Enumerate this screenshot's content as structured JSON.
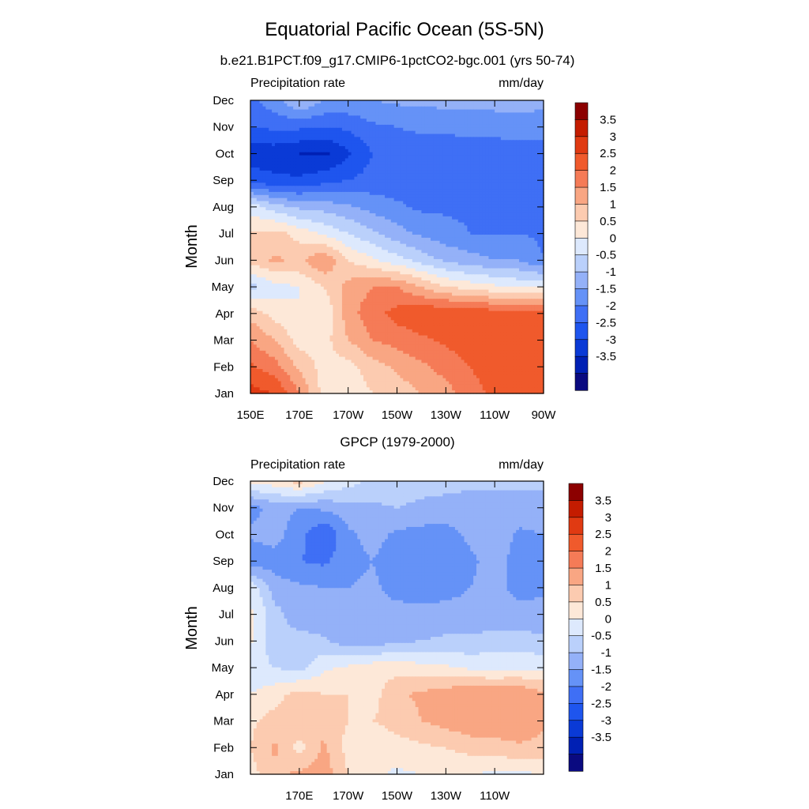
{
  "figure": {
    "title": "Equatorial Pacific Ocean (5S-5N)"
  },
  "chart_data": [
    {
      "type": "heatmap",
      "title": "b.e21.B1PCT.f09_g17.CMIP6-1pctCO2-bgc.001 (yrs 50-74)",
      "left_string": "Precipitation rate",
      "right_string": "mm/day",
      "ylabel": "Month",
      "x_ticks": [
        150,
        170,
        190,
        210,
        230,
        250,
        270
      ],
      "x_tick_labels": [
        "150E",
        "170E",
        "170W",
        "150W",
        "130W",
        "110W",
        "90W"
      ],
      "xlim": [
        150,
        270
      ],
      "y_ticks": [
        1,
        2,
        3,
        4,
        5,
        6,
        7,
        8,
        9,
        10,
        11,
        12
      ],
      "y_tick_labels": [
        "Jan",
        "Feb",
        "Mar",
        "Apr",
        "May",
        "Jun",
        "Jul",
        "Aug",
        "Sep",
        "Oct",
        "Nov",
        "Dec"
      ],
      "ylim": [
        1,
        12
      ],
      "x": [
        150,
        160,
        170,
        180,
        190,
        200,
        210,
        220,
        230,
        240,
        250,
        260,
        270
      ],
      "months": [
        1,
        2,
        3,
        4,
        5,
        6,
        7,
        8,
        9,
        10,
        11,
        12
      ],
      "values": [
        [
          3.2,
          3.0,
          2.0,
          0.8,
          0.6,
          1.0,
          1.2,
          1.5,
          1.8,
          2.3,
          2.6,
          2.5,
          2.8
        ],
        [
          2.6,
          2.2,
          1.4,
          0.8,
          0.8,
          1.3,
          1.6,
          1.9,
          2.2,
          2.5,
          2.8,
          2.8,
          2.8
        ],
        [
          2.0,
          1.5,
          0.8,
          0.8,
          1.5,
          2.0,
          2.2,
          2.4,
          2.6,
          2.8,
          2.9,
          3.0,
          2.8
        ],
        [
          1.3,
          0.8,
          0.5,
          0.5,
          1.8,
          2.3,
          2.7,
          2.9,
          3.0,
          2.9,
          2.8,
          2.8,
          2.8
        ],
        [
          -0.2,
          0.3,
          0.5,
          1.0,
          1.7,
          2.0,
          2.0,
          1.5,
          1.0,
          0.8,
          0.6,
          0.4,
          0.5
        ],
        [
          1.2,
          1.6,
          1.4,
          2.0,
          1.0,
          0.6,
          0.2,
          -0.2,
          -0.6,
          -0.8,
          -1.0,
          -1.0,
          -1.5
        ],
        [
          1.0,
          1.2,
          0.8,
          0.4,
          0.0,
          -0.4,
          -0.8,
          -1.1,
          -1.3,
          -1.5,
          -1.5,
          -1.5,
          -1.6
        ],
        [
          0.3,
          -0.3,
          -0.6,
          -0.7,
          -0.9,
          -1.2,
          -1.4,
          -1.6,
          -1.6,
          -1.6,
          -1.7,
          -1.8,
          -1.8
        ],
        [
          -2.2,
          -2.4,
          -2.4,
          -2.2,
          -2.0,
          -1.8,
          -1.8,
          -1.8,
          -1.8,
          -1.8,
          -1.8,
          -1.8,
          -1.8
        ],
        [
          -2.8,
          -2.8,
          -3.0,
          -3.1,
          -2.6,
          -2.0,
          -1.8,
          -1.8,
          -1.8,
          -1.8,
          -1.8,
          -1.8,
          -1.8
        ],
        [
          -2.0,
          -1.9,
          -1.9,
          -2.0,
          -1.9,
          -1.6,
          -1.5,
          -1.4,
          -1.4,
          -1.3,
          -1.3,
          -1.2,
          -1.2
        ],
        [
          -1.6,
          -1.2,
          -0.4,
          -1.0,
          -1.1,
          -1.0,
          -0.9,
          -0.9,
          -0.8,
          -0.8,
          -0.8,
          -0.8,
          -0.9
        ]
      ],
      "colorbar_levels": [
        -4,
        -3.5,
        -3,
        -2.5,
        -2,
        -1.5,
        -1,
        -0.5,
        0,
        0.5,
        1,
        1.5,
        2,
        2.5,
        3,
        3.5,
        4
      ],
      "colorbar_labels": [
        "3.5",
        "3",
        "2.5",
        "2",
        "1.5",
        "1",
        "0.5",
        "0",
        "-0.5",
        "-1",
        "-1.5",
        "-2",
        "-2.5",
        "-3",
        "-3.5"
      ]
    },
    {
      "type": "heatmap",
      "title": "GPCP (1979-2000)",
      "left_string": "Precipitation rate",
      "right_string": "mm/day",
      "ylabel": "Month",
      "x_ticks": [
        170,
        190,
        210,
        230,
        250
      ],
      "x_tick_labels": [
        "170E",
        "170W",
        "150W",
        "130W",
        "110W"
      ],
      "xlim": [
        150,
        270
      ],
      "y_ticks": [
        1,
        2,
        3,
        4,
        5,
        6,
        7,
        8,
        9,
        10,
        11,
        12
      ],
      "y_tick_labels": [
        "Jan",
        "Feb",
        "Mar",
        "Apr",
        "May",
        "Jun",
        "Jul",
        "Aug",
        "Sep",
        "Oct",
        "Nov",
        "Dec"
      ],
      "ylim": [
        1,
        12
      ],
      "x": [
        150,
        160,
        170,
        180,
        190,
        200,
        210,
        220,
        230,
        240,
        250,
        260,
        270
      ],
      "months": [
        1,
        2,
        3,
        4,
        5,
        6,
        7,
        8,
        9,
        10,
        11,
        12
      ],
      "values": [
        [
          0.8,
          1.4,
          1.6,
          1.8,
          1.0,
          0.6,
          0.4,
          0.5,
          0.6,
          0.5,
          0.4,
          0.4,
          0.5
        ],
        [
          1.0,
          1.6,
          0.8,
          1.6,
          0.8,
          0.6,
          0.8,
          0.9,
          1.0,
          1.2,
          1.3,
          1.4,
          1.3
        ],
        [
          0.9,
          1.2,
          1.5,
          1.3,
          1.0,
          1.0,
          1.2,
          1.5,
          1.7,
          1.9,
          1.8,
          2.0,
          1.6
        ],
        [
          0.5,
          0.8,
          1.2,
          1.0,
          1.0,
          0.8,
          1.4,
          1.6,
          1.8,
          2.0,
          1.9,
          2.0,
          1.6
        ],
        [
          0.2,
          0.0,
          -0.2,
          0.4,
          0.6,
          0.8,
          0.8,
          0.7,
          0.6,
          0.4,
          0.4,
          0.4,
          0.4
        ],
        [
          0.6,
          -0.4,
          -0.3,
          -0.4,
          -0.8,
          -0.8,
          -0.6,
          -0.5,
          -0.4,
          -0.4,
          -0.3,
          -0.3,
          -0.4
        ],
        [
          0.6,
          -0.3,
          -0.8,
          -0.9,
          -0.9,
          -0.8,
          -0.8,
          -0.8,
          -0.8,
          -0.8,
          -0.8,
          -0.8,
          -0.8
        ],
        [
          0.4,
          -0.8,
          -0.9,
          -1.0,
          -1.0,
          -0.9,
          -1.2,
          -1.3,
          -1.2,
          -1.0,
          -0.8,
          -1.2,
          -1.1
        ],
        [
          -1.4,
          -1.2,
          -1.5,
          -1.6,
          -1.2,
          -1.0,
          -1.3,
          -1.3,
          -1.3,
          -1.1,
          -0.8,
          -1.2,
          -1.2
        ],
        [
          -0.9,
          -0.8,
          -1.3,
          -2.0,
          -1.1,
          -0.8,
          -1.1,
          -1.2,
          -1.2,
          -0.9,
          -0.7,
          -1.1,
          -1.0
        ],
        [
          -1.2,
          -0.8,
          -1.0,
          -0.9,
          -0.7,
          -0.6,
          -0.5,
          -0.6,
          -0.7,
          -0.7,
          -0.7,
          -0.7,
          -0.7
        ],
        [
          0.6,
          0.8,
          1.2,
          0.6,
          0.2,
          -0.1,
          -0.2,
          -0.3,
          -0.3,
          -0.4,
          -0.4,
          -0.4,
          -0.4
        ]
      ],
      "colorbar_levels": [
        -4,
        -3.5,
        -3,
        -2.5,
        -2,
        -1.5,
        -1,
        -0.5,
        0,
        0.5,
        1,
        1.5,
        2,
        2.5,
        3,
        3.5,
        4
      ],
      "colorbar_labels": [
        "3.5",
        "3",
        "2.5",
        "2",
        "1.5",
        "1",
        "0.5",
        "0",
        "-0.5",
        "-1",
        "-1.5",
        "-2",
        "-2.5",
        "-3",
        "-3.5"
      ]
    }
  ],
  "colors": {
    "palette": [
      "#0a0a80",
      "#0020b4",
      "#0a3ad6",
      "#1e55ee",
      "#3f6ff5",
      "#6592f7",
      "#94b1f8",
      "#bad0fb",
      "#dde9fd",
      "#fde8d8",
      "#fccbb0",
      "#f9a683",
      "#f57b57",
      "#f05a2c",
      "#e03a12",
      "#c41c00",
      "#8c0000"
    ]
  }
}
